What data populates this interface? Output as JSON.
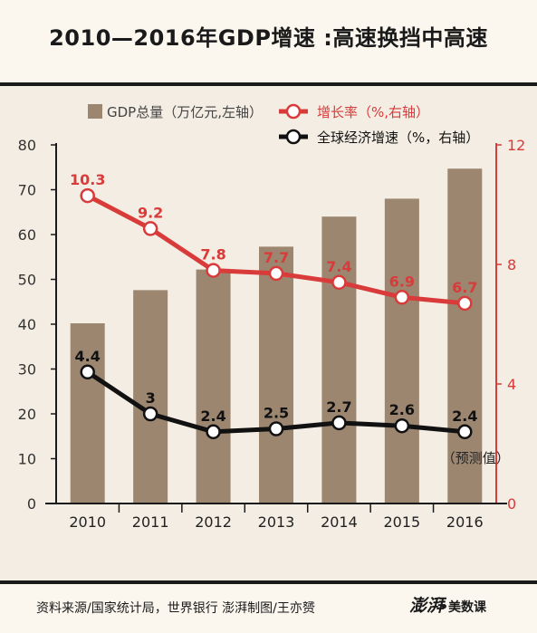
{
  "header": {
    "title": "2010—2016年GDP增速 :高速换挡中高速"
  },
  "footer": {
    "source": "资料来源/国家统计局，世界银行  澎湃制图/王亦赟",
    "logo": "澎湃",
    "logo_sub": "•美数课"
  },
  "colors": {
    "bar": "#9c8670",
    "growth": "#d93a3a",
    "world": "#111111",
    "axis": "#1a1a1a"
  },
  "chart_data": {
    "type": "bar",
    "categories": [
      "2010",
      "2011",
      "2012",
      "2013",
      "2014",
      "2015",
      "2016"
    ],
    "left_axis": {
      "ylim": [
        0,
        80
      ],
      "ticks": [
        0,
        10,
        20,
        30,
        40,
        50,
        60,
        70,
        80
      ]
    },
    "right_axis": {
      "ylim": [
        0,
        12
      ],
      "ticks": [
        0,
        4,
        8,
        12
      ]
    },
    "series": [
      {
        "name": "GDP总量（万亿元,左轴）",
        "type": "bar",
        "axis": "left",
        "values": [
          40.2,
          47.6,
          52.2,
          57.3,
          64.0,
          68.0,
          74.7
        ]
      },
      {
        "name": "增长率（%,右轴）",
        "type": "line",
        "axis": "right",
        "values": [
          10.3,
          9.2,
          7.8,
          7.7,
          7.4,
          6.9,
          6.7
        ],
        "labels": [
          "10.3",
          "9.2",
          "7.8",
          "7.7",
          "7.4",
          "6.9",
          "6.7"
        ]
      },
      {
        "name": "全球经济增速（%，右轴）",
        "type": "line",
        "axis": "right",
        "values": [
          4.4,
          3.0,
          2.4,
          2.5,
          2.7,
          2.6,
          2.4
        ],
        "labels": [
          "4.4",
          "3",
          "2.4",
          "2.5",
          "2.7",
          "2.6",
          "2.4"
        ]
      }
    ],
    "annotations": [
      {
        "text": "（预测值）",
        "category": "2016"
      }
    ],
    "legend": "top"
  }
}
